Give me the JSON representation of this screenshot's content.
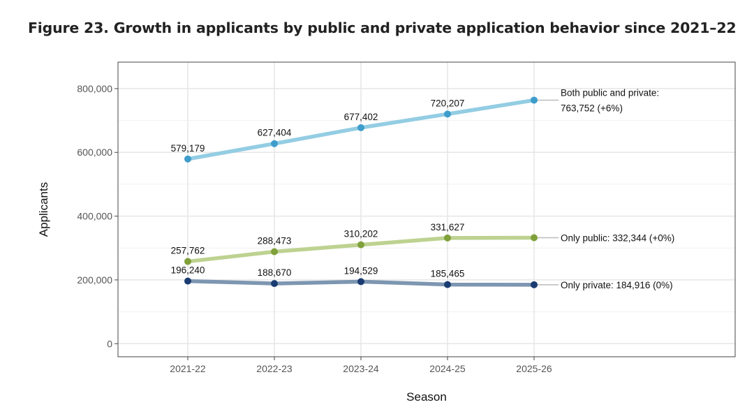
{
  "chart_data": {
    "type": "line",
    "title": "Figure 23. Growth in applicants by public and private application behavior since 2021–22",
    "xlabel": "Season",
    "ylabel": "Applicants",
    "categories": [
      "2021-22",
      "2022-23",
      "2023-24",
      "2024-25",
      "2025-26"
    ],
    "ylim": [
      -41000,
      883000
    ],
    "yticks": [
      0,
      200000,
      400000,
      600000,
      800000
    ],
    "ytick_labels": [
      "0",
      "200,000",
      "400,000",
      "600,000",
      "800,000"
    ],
    "grid": true,
    "series": [
      {
        "values": [
          579179,
          627404,
          677402,
          720207,
          763752
        ],
        "value_labels": [
          "579,179",
          "627,404",
          "677,402",
          "720,207"
        ],
        "end_label": [
          "Both public and private:",
          "763,752 (+6%)"
        ],
        "line_color": "#93CDE3",
        "point_color": "#3E9DCB"
      },
      {
        "values": [
          257762,
          288473,
          310202,
          331627,
          332344
        ],
        "value_labels": [
          "257,762",
          "288,473",
          "310,202",
          "331,627"
        ],
        "end_label": [
          "Only public: 332,344 (+0%)"
        ],
        "line_color": "#BDD290",
        "point_color": "#7FA03A"
      },
      {
        "values": [
          196240,
          188670,
          194529,
          185465,
          184916
        ],
        "value_labels": [
          "196,240",
          "188,670",
          "194,529",
          "185,465"
        ],
        "end_label": [
          "Only private: 184,916 (0%)"
        ],
        "line_color": "#7D96B1",
        "point_color": "#1B3C72"
      }
    ]
  }
}
